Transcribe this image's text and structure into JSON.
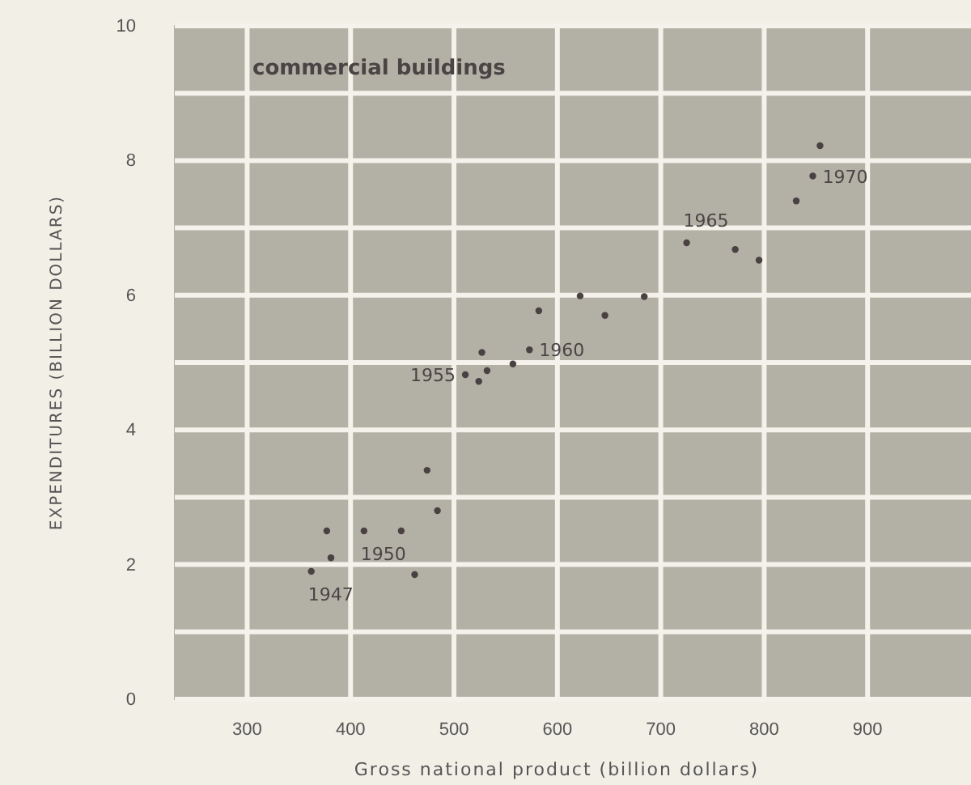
{
  "chart_data": {
    "type": "scatter",
    "title": "commercial buildings",
    "xlabel": "Gross national product (billion dollars)",
    "ylabel": "EXPENDITURES (BILLION DOLLARS)",
    "x": [
      362,
      381,
      377,
      413,
      449,
      462,
      484,
      474,
      511,
      524,
      532,
      527,
      557,
      573,
      582,
      622,
      646,
      684,
      725,
      772,
      795,
      831,
      847,
      854
    ],
    "series": [
      {
        "color": "#4a4242",
        "values": [
          1.9,
          2.1,
          2.5,
          2.5,
          2.5,
          1.85,
          2.8,
          3.4,
          4.82,
          4.72,
          4.88,
          5.15,
          4.98,
          5.19,
          5.77,
          5.99,
          5.7,
          5.98,
          6.78,
          6.68,
          6.52,
          7.4,
          7.77,
          8.22
        ]
      }
    ],
    "xlim": [
      230,
      1000
    ],
    "ylim": [
      0,
      10
    ],
    "xticks": [
      300,
      400,
      500,
      600,
      700,
      800,
      900
    ],
    "yticks": [
      0,
      {
        "value": 1,
        "label": null
      },
      2,
      {
        "value": 3,
        "label": null
      },
      4,
      {
        "value": 5,
        "label": null
      },
      6,
      {
        "value": 7,
        "label": null
      },
      8,
      {
        "value": 9,
        "label": null
      },
      10
    ],
    "grid": true,
    "marker": "circle",
    "annotations": [
      {
        "text": "1947",
        "x": 362,
        "y": 1.9
      },
      {
        "text": "1950",
        "x": 413,
        "y": 2.5
      },
      {
        "text": "1955",
        "x": 511,
        "y": 4.82
      },
      {
        "text": "1960",
        "x": 573,
        "y": 5.19
      },
      {
        "text": "1965",
        "x": 725,
        "y": 6.78
      },
      {
        "text": "1970",
        "x": 847,
        "y": 7.77
      }
    ]
  }
}
